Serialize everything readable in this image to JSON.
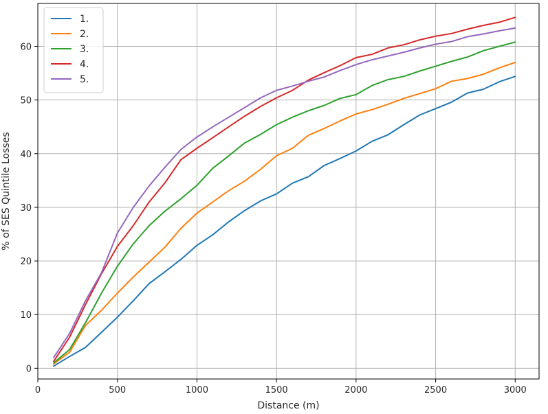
{
  "chart_data": {
    "type": "line",
    "title": "",
    "xlabel": "Distance (m)",
    "ylabel": "% of SES Quintile Losses",
    "xlim": [
      0,
      3150
    ],
    "ylim": [
      -2,
      68
    ],
    "xticks": [
      0,
      500,
      1000,
      1500,
      2000,
      2500,
      3000
    ],
    "yticks": [
      0,
      10,
      20,
      30,
      40,
      50,
      60
    ],
    "grid": true,
    "legend": "top-left",
    "x": [
      100,
      200,
      300,
      400,
      500,
      600,
      700,
      800,
      900,
      1000,
      1100,
      1200,
      1300,
      1400,
      1500,
      1600,
      1700,
      1800,
      1900,
      2000,
      2100,
      2200,
      2300,
      2400,
      2500,
      2600,
      2700,
      2800,
      2900,
      3000
    ],
    "series": [
      {
        "name": "1.",
        "color": "#1f77b4",
        "values": [
          0.4,
          2.2,
          3.9,
          6.7,
          9.5,
          12.6,
          15.8,
          18.0,
          20.3,
          22.9,
          24.9,
          27.3,
          29.4,
          31.2,
          32.5,
          34.5,
          35.7,
          37.8,
          39.1,
          40.5,
          42.3,
          43.5,
          45.4,
          47.2,
          48.4,
          49.6,
          51.3,
          52.0,
          53.4,
          54.4
        ]
      },
      {
        "name": "2.",
        "color": "#ff7f0e",
        "values": [
          0.8,
          3.0,
          8.0,
          10.8,
          14.0,
          17.0,
          19.8,
          22.6,
          26.1,
          28.9,
          31.0,
          33.1,
          34.9,
          37.1,
          39.6,
          41.0,
          43.4,
          44.7,
          46.1,
          47.4,
          48.2,
          49.2,
          50.3,
          51.2,
          52.1,
          53.5,
          54.0,
          54.8,
          56.0,
          57.0
        ]
      },
      {
        "name": "3.",
        "color": "#2ca02c",
        "values": [
          1.0,
          3.5,
          8.5,
          14.0,
          19.0,
          23.2,
          26.6,
          29.3,
          31.6,
          34.1,
          37.3,
          39.6,
          42.0,
          43.6,
          45.4,
          46.8,
          48.0,
          49.0,
          50.3,
          51.0,
          52.7,
          53.8,
          54.4,
          55.4,
          56.3,
          57.2,
          58.0,
          59.2,
          60.0,
          60.8
        ]
      },
      {
        "name": "4.",
        "color": "#d62728",
        "values": [
          1.3,
          5.8,
          11.9,
          17.6,
          22.7,
          26.6,
          31.0,
          34.6,
          38.9,
          41.0,
          43.0,
          45.0,
          47.0,
          48.8,
          50.4,
          51.8,
          53.7,
          55.1,
          56.4,
          57.9,
          58.5,
          59.7,
          60.3,
          61.2,
          61.9,
          62.4,
          63.2,
          63.9,
          64.5,
          65.4
        ]
      },
      {
        "name": "5.",
        "color": "#9467bd",
        "values": [
          2.0,
          6.5,
          12.6,
          17.8,
          25.2,
          30.0,
          34.0,
          37.5,
          40.8,
          43.1,
          45.0,
          46.8,
          48.6,
          50.4,
          51.8,
          52.6,
          53.5,
          54.3,
          55.5,
          56.6,
          57.5,
          58.2,
          58.9,
          59.7,
          60.4,
          60.9,
          61.8,
          62.3,
          62.9,
          63.4
        ]
      }
    ]
  }
}
